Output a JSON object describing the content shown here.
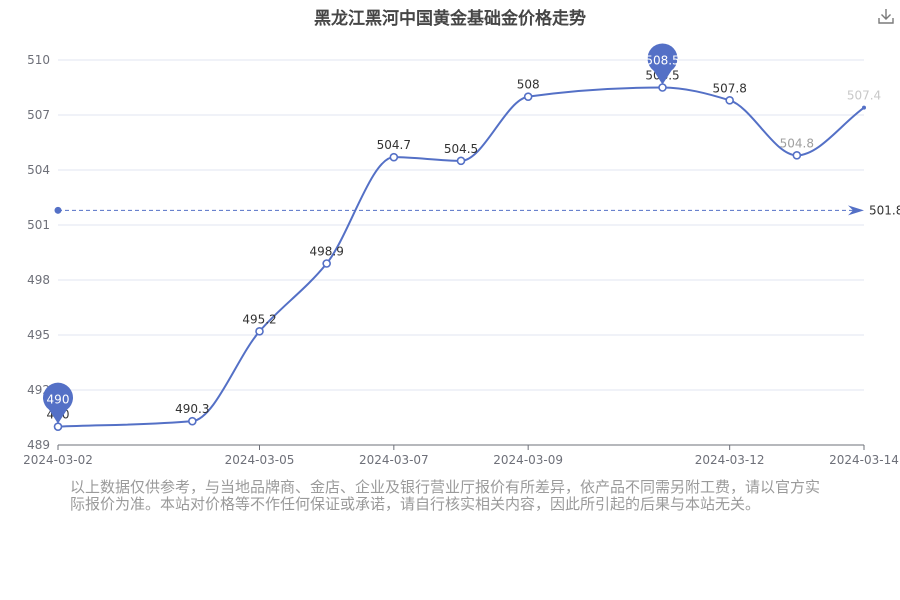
{
  "chart_data": {
    "type": "line",
    "title": "黑龙江黑河中国黄金基础金价格走势",
    "x": [
      "2024-03-02",
      "2024-03-04",
      "2024-03-05",
      "2024-03-06",
      "2024-03-07",
      "2024-03-08",
      "2024-03-09",
      "2024-03-11",
      "2024-03-12",
      "2024-03-13",
      "2024-03-14"
    ],
    "x_tick_labels": [
      "2024-03-02",
      "2024-03-05",
      "2024-03-07",
      "2024-03-09",
      "2024-03-12",
      "2024-03-14"
    ],
    "series": [
      {
        "values": [
          490,
          490.3,
          495.2,
          498.9,
          504.7,
          504.5,
          508,
          508.5,
          507.8,
          504.8,
          507.4
        ]
      }
    ],
    "y_ticks": [
      489,
      492,
      495,
      498,
      501,
      504,
      507,
      510
    ],
    "ylim": [
      489,
      510
    ],
    "max": {
      "value": 508.5,
      "label": "508.5"
    },
    "min": {
      "value": 490,
      "label": "490"
    },
    "average": {
      "value": 501.8,
      "label": "501.8"
    },
    "grid": true,
    "smooth": true,
    "color": "#5470c6"
  },
  "icons": {
    "download": "download-icon"
  },
  "note": "以上数据仅供参考，与当地品牌商、金店、企业及银行营业厅报价有所差异，依产品不同需另附工费，请以官方实际报价为准。本站对价格等不作任何保证或承诺，请自行核实相关内容，因此所引起的后果与本站无关。"
}
